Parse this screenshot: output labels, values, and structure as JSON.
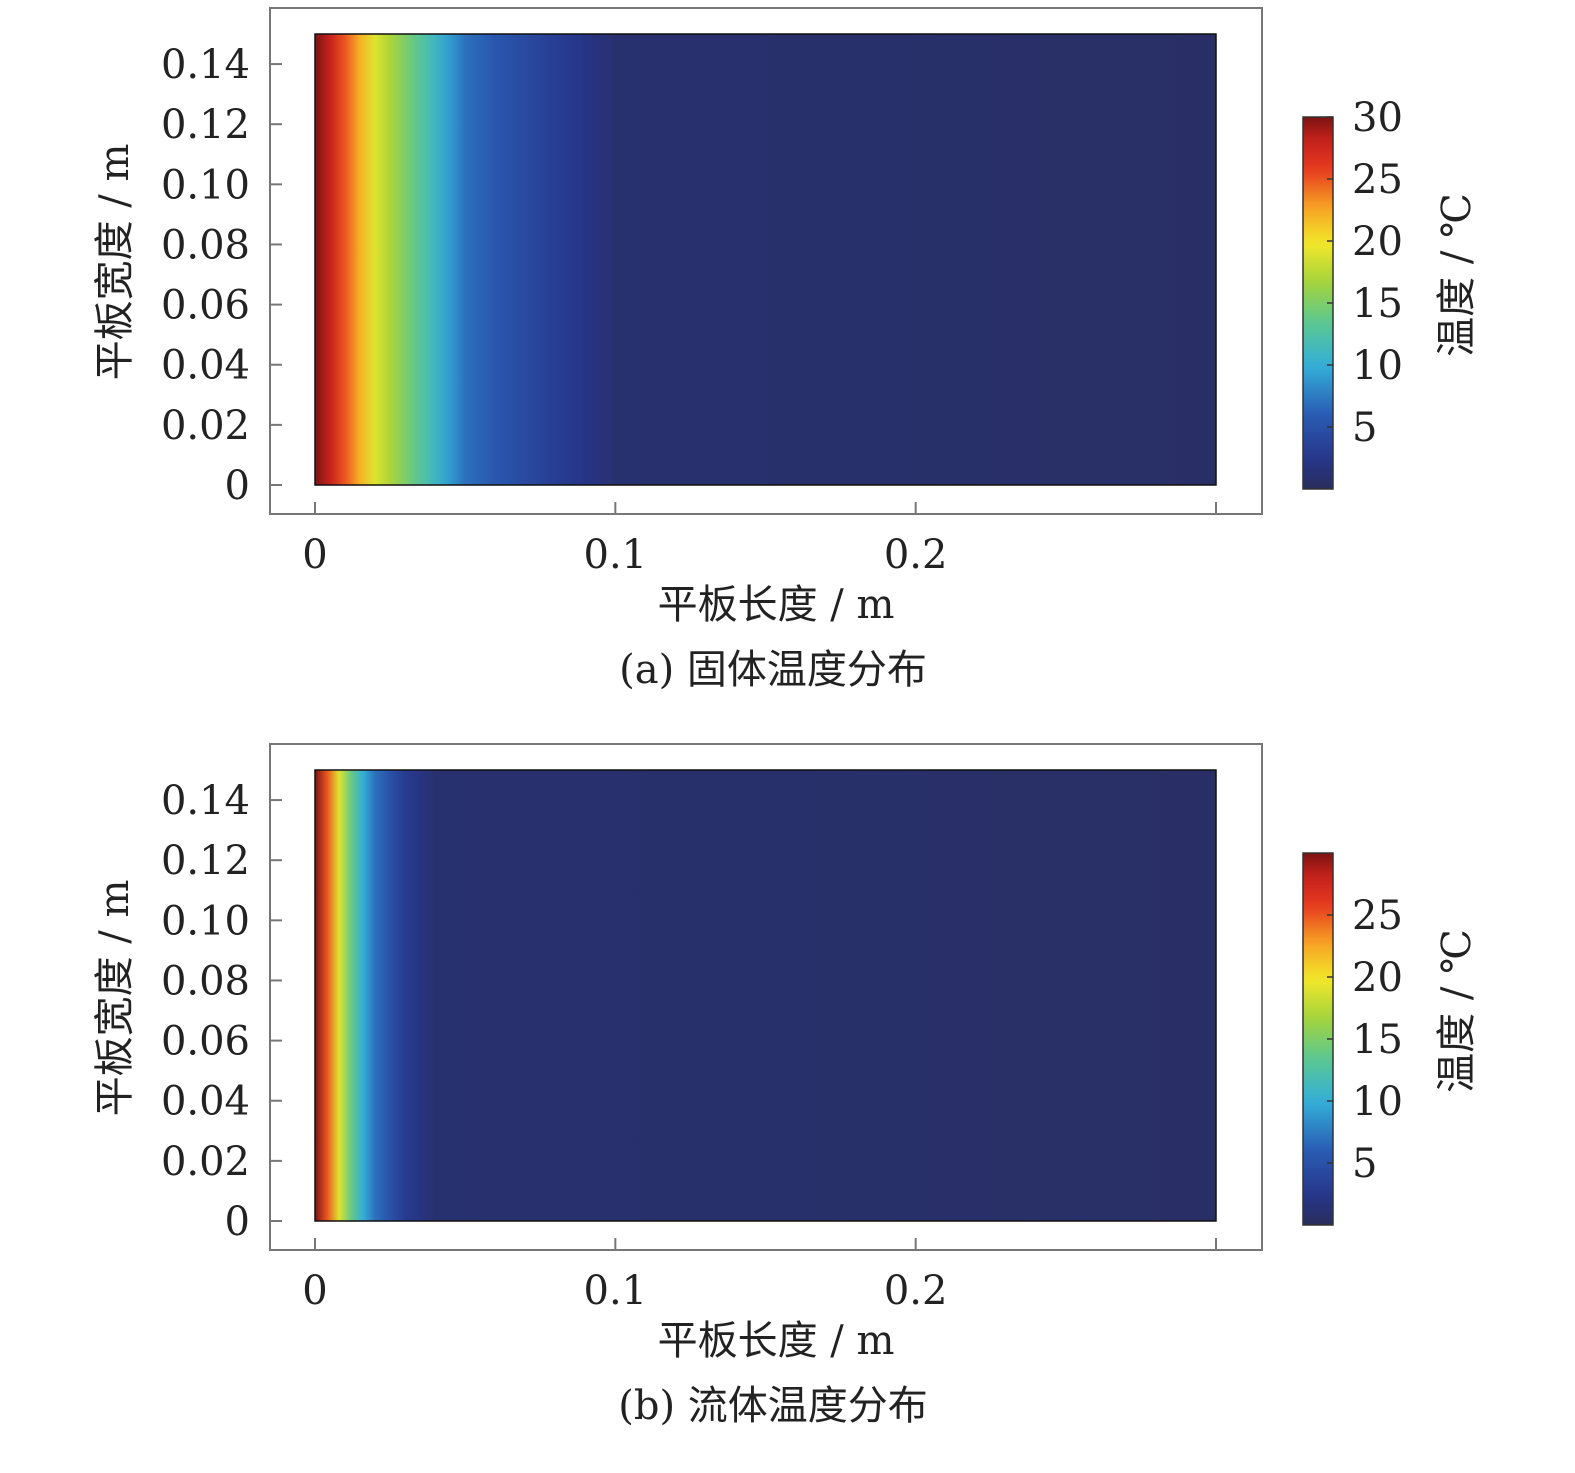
{
  "chart_data": [
    {
      "type": "heatmap",
      "caption": "(a) 固体温度分布",
      "xlabel": "平板长度 / m",
      "ylabel": "平板宽度 / m",
      "x_ticks": [
        "0",
        "0.1",
        "0.2"
      ],
      "x_tick_values": [
        0,
        0.1,
        0.2
      ],
      "y_ticks": [
        "0",
        "0.02",
        "0.04",
        "0.06",
        "0.08",
        "0.10",
        "0.12",
        "0.14"
      ],
      "y_tick_values": [
        0,
        0.02,
        0.04,
        0.06,
        0.08,
        0.1,
        0.12,
        0.14
      ],
      "xlim": [
        0,
        0.3
      ],
      "ylim": [
        0,
        0.15
      ],
      "colorbar": {
        "label": "温度 / ℃",
        "ticks": [
          "5",
          "10",
          "15",
          "20",
          "25",
          "30"
        ],
        "tick_values": [
          5,
          10,
          15,
          20,
          25,
          30
        ],
        "range": [
          0,
          30
        ]
      },
      "temperature_profile": {
        "x": [
          0,
          0.005,
          0.01,
          0.015,
          0.02,
          0.025,
          0.03,
          0.035,
          0.04,
          0.045,
          0.05,
          0.06,
          0.07,
          0.08,
          0.09,
          0.1,
          0.3
        ],
        "temperature": [
          30,
          28,
          25,
          22,
          19,
          17,
          15,
          13,
          11,
          9,
          7,
          5.5,
          4.3,
          3.2,
          2.2,
          1,
          0.5
        ]
      },
      "colors": {
        "low": "#2a2e5c",
        "high": "#7a1412"
      }
    },
    {
      "type": "heatmap",
      "caption": "(b) 流体温度分布",
      "xlabel": "平板长度 / m",
      "ylabel": "平板宽度 / m",
      "x_ticks": [
        "0",
        "0.1",
        "0.2"
      ],
      "x_tick_values": [
        0,
        0.1,
        0.2
      ],
      "y_ticks": [
        "0",
        "0.02",
        "0.04",
        "0.06",
        "0.08",
        "0.10",
        "0.12",
        "0.14"
      ],
      "y_tick_values": [
        0,
        0.02,
        0.04,
        0.06,
        0.08,
        0.1,
        0.12,
        0.14
      ],
      "xlim": [
        0,
        0.3
      ],
      "ylim": [
        0,
        0.15
      ],
      "colorbar": {
        "label": "温度 / ℃",
        "ticks": [
          "5",
          "10",
          "15",
          "20",
          "25"
        ],
        "tick_values": [
          5,
          10,
          15,
          20,
          25
        ],
        "range": [
          0,
          30
        ]
      },
      "temperature_profile": {
        "x": [
          0,
          0.004,
          0.008,
          0.012,
          0.016,
          0.02,
          0.025,
          0.03,
          0.035,
          0.04,
          0.3
        ],
        "temperature": [
          30,
          25,
          19,
          14,
          10,
          7,
          5,
          3,
          2,
          1,
          0.5
        ]
      },
      "colors": {
        "low": "#2a2e5c",
        "high": "#7a1412"
      }
    }
  ]
}
